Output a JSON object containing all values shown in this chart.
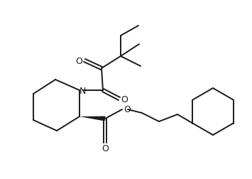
{
  "background_color": "#ffffff",
  "line_color": "#1a1a1a",
  "line_width": 1.4,
  "figsize": [
    3.55,
    2.53
  ],
  "dpi": 100,
  "xlim": [
    0,
    355
  ],
  "ylim": [
    0,
    253
  ]
}
